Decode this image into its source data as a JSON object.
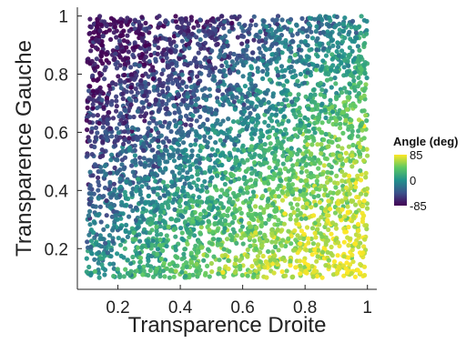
{
  "chart_data": {
    "type": "scatter",
    "title": "",
    "xlabel": "Transparence Droite",
    "ylabel": "Transparence Gauche",
    "xlim": [
      0.07,
      1.03
    ],
    "ylim": [
      0.06,
      1.03
    ],
    "xticks": [
      0.2,
      0.4,
      0.6,
      0.8,
      1
    ],
    "xtick_labels": [
      "0.2",
      "0.4",
      "0.6",
      "0.8",
      "1"
    ],
    "yticks": [
      0.2,
      0.4,
      0.6,
      0.8,
      1
    ],
    "ytick_labels": [
      "0.2",
      "0.4",
      "0.6",
      "0.8",
      "1"
    ],
    "grid": false,
    "color_variable": "Angle (deg)",
    "colormap": "viridis",
    "color_range": [
      -85,
      85
    ],
    "colorbar_ticks": [
      85,
      0,
      -85
    ],
    "colorbar_tick_labels": [
      "85",
      "0",
      "-85"
    ],
    "legend_position": "right",
    "point_count": 4000,
    "x_range_of_points": [
      0.1,
      1.0
    ],
    "y_range_of_points": [
      0.1,
      1.0
    ],
    "angle_trend": "Angle increases from about -85 at low Transparence Droite and high Transparence Gauche to about +85 at high Transparence Droite and low Transparence Gauche",
    "sample_points": [
      {
        "x": 0.12,
        "y": 0.98,
        "angle": -80
      },
      {
        "x": 0.15,
        "y": 0.85,
        "angle": -60
      },
      {
        "x": 0.2,
        "y": 0.7,
        "angle": -45
      },
      {
        "x": 0.3,
        "y": 0.9,
        "angle": -55
      },
      {
        "x": 0.4,
        "y": 0.6,
        "angle": -15
      },
      {
        "x": 0.5,
        "y": 0.5,
        "angle": 0
      },
      {
        "x": 0.6,
        "y": 0.4,
        "angle": 15
      },
      {
        "x": 0.7,
        "y": 0.3,
        "angle": 35
      },
      {
        "x": 0.8,
        "y": 0.2,
        "angle": 55
      },
      {
        "x": 0.9,
        "y": 0.15,
        "angle": 70
      },
      {
        "x": 0.95,
        "y": 0.3,
        "angle": 50
      },
      {
        "x": 0.98,
        "y": 0.95,
        "angle": -5
      }
    ],
    "colors": {
      "axis": "#222222",
      "viridis_low": "#440154",
      "viridis_mid": "#21918c",
      "viridis_high": "#fde725"
    }
  }
}
